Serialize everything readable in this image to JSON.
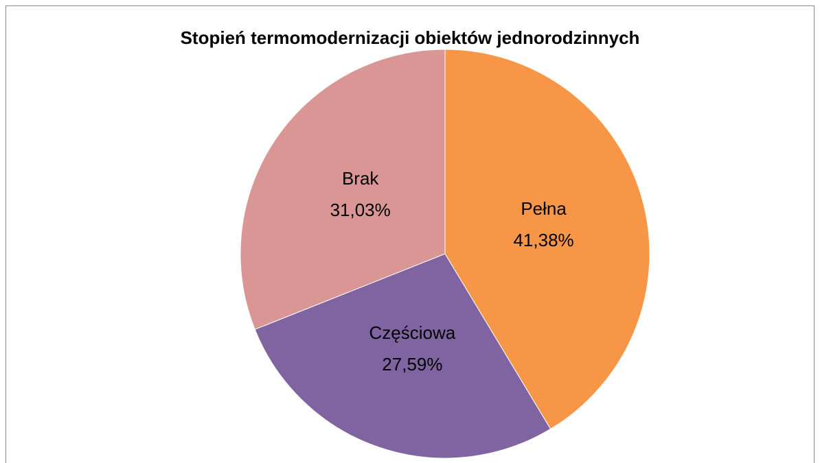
{
  "chart_data": {
    "type": "pie",
    "title": "Stopień termomodernizacji obiektów jednorodzinnych",
    "categories": [
      "Pełna",
      "Częściowa",
      "Brak"
    ],
    "values": [
      41.38,
      27.59,
      31.03
    ],
    "value_labels": [
      "41,38%",
      "27,59%",
      "31,03%"
    ],
    "colors": [
      "#f79646",
      "#8064a2",
      "#d99694"
    ]
  }
}
